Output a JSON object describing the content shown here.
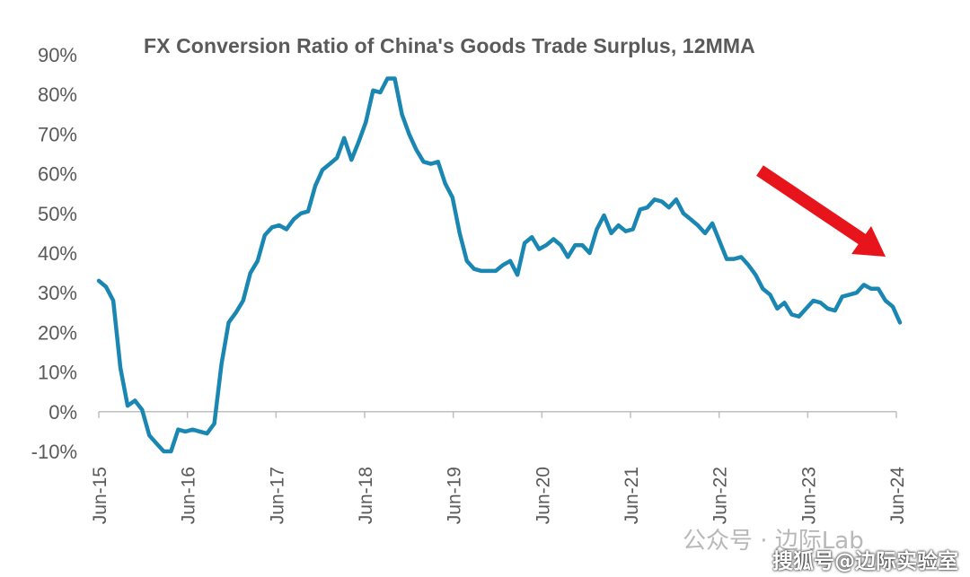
{
  "chart_data": {
    "type": "line",
    "title": "FX Conversion Ratio of  China's Goods Trade Surplus, 12MMA",
    "xlabel": "",
    "ylabel": "",
    "ylim": [
      -10,
      90
    ],
    "y_ticks": [
      "90%",
      "80%",
      "70%",
      "60%",
      "50%",
      "40%",
      "30%",
      "20%",
      "10%",
      "0%",
      "-10%"
    ],
    "x_ticks": [
      "Jun-15",
      "Jun-16",
      "Jun-17",
      "Jun-18",
      "Jun-19",
      "Jun-20",
      "Jun-21",
      "Jun-22",
      "Jun-23",
      "Jun-24"
    ],
    "grid": false,
    "color": "#1a87b3",
    "annotation": {
      "type": "arrow",
      "color": "#e8141b",
      "description": "downward trend arrow"
    },
    "series": [
      {
        "values": [
          33,
          31.5,
          28,
          11,
          1.5,
          2.8,
          0.5,
          -6,
          -8,
          -10,
          -10,
          -4.5,
          -5,
          -4.5,
          -5,
          -5.5,
          -3,
          12,
          22.5,
          25,
          28,
          35,
          38,
          44.5,
          46.5,
          47,
          46,
          48.5,
          50,
          50.5,
          57,
          61,
          62.5,
          64,
          69,
          63.5,
          68,
          73,
          81,
          80.5,
          84,
          84,
          75,
          70,
          66,
          63,
          62.5,
          63,
          57.5,
          54,
          45,
          38,
          36,
          35.5,
          35.5,
          35.5,
          37,
          38,
          34.5,
          42.5,
          44,
          41,
          42,
          43.5,
          42,
          39,
          42,
          42,
          40,
          46,
          49.5,
          45,
          47,
          45.5,
          46,
          51,
          51.5,
          53.5,
          53,
          51.5,
          53.5,
          50,
          48.5,
          47,
          45,
          47.5,
          43,
          38.5,
          38.5,
          39,
          37,
          34.5,
          31,
          29.5,
          26,
          27.5,
          24.5,
          24,
          26,
          28,
          27.5,
          26,
          25.5,
          29,
          29.5,
          30,
          32,
          31,
          31,
          28,
          26.5,
          22.5
        ]
      }
    ]
  },
  "watermark": {
    "line1": "公众号 · 边际Lab",
    "line2": "搜狐号@边际实验室"
  }
}
